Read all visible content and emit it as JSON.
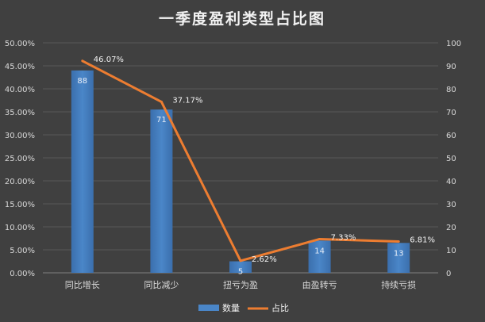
{
  "chart_data": {
    "type": "bar",
    "title": "一季度盈利类型占比图",
    "categories": [
      "同比增长",
      "同比减少",
      "扭亏为盈",
      "由盈转亏",
      "持续亏损"
    ],
    "series": [
      {
        "name": "数量",
        "type": "bar",
        "axis": "right",
        "values": [
          88,
          71,
          5,
          14,
          13
        ],
        "labels": [
          "88",
          "71",
          "5",
          "14",
          "13"
        ],
        "color": "#4a86c8"
      },
      {
        "name": "占比",
        "type": "line",
        "axis": "left",
        "values": [
          46.07,
          37.17,
          2.62,
          7.33,
          6.81
        ],
        "labels": [
          "46.07%",
          "37.17%",
          "2.62%",
          "7.33%",
          "6.81%"
        ],
        "color": "#ed7d31"
      }
    ],
    "y_left": {
      "min": 0,
      "max": 50,
      "ticks": [
        "0.00%",
        "5.00%",
        "10.00%",
        "15.00%",
        "20.00%",
        "25.00%",
        "30.00%",
        "35.00%",
        "40.00%",
        "45.00%",
        "50.00%"
      ]
    },
    "y_right": {
      "min": 0,
      "max": 100,
      "ticks": [
        "0",
        "10",
        "20",
        "30",
        "40",
        "50",
        "60",
        "70",
        "80",
        "90",
        "100"
      ]
    },
    "grid": true,
    "legend": "bottom"
  }
}
